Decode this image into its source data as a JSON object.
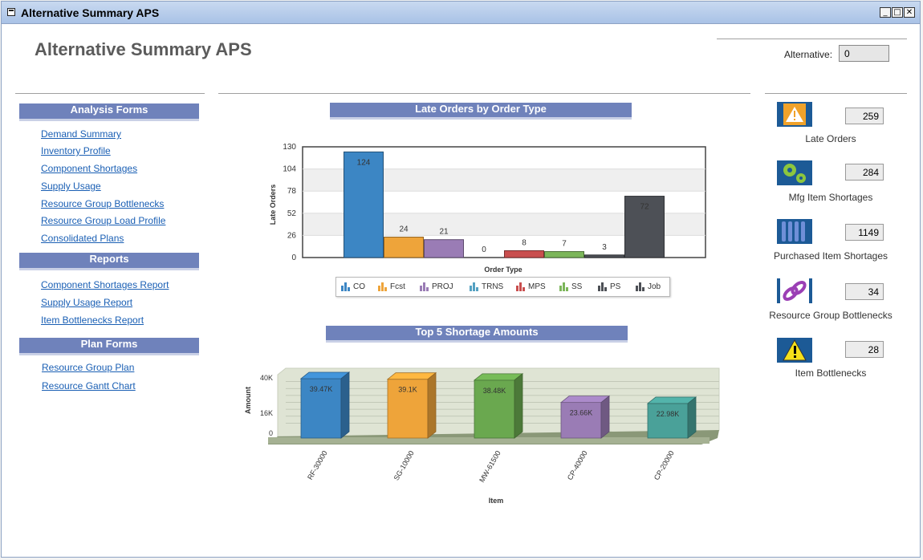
{
  "window": {
    "title": "Alternative Summary APS",
    "minimize": "_",
    "maximize": "□",
    "close": "✕"
  },
  "page": {
    "title": "Alternative Summary APS"
  },
  "alternative": {
    "label": "Alternative:",
    "value": "0"
  },
  "sections": {
    "analysis": {
      "title": "Analysis Forms",
      "links": [
        "Demand Summary",
        "Inventory Profile",
        "Component Shortages",
        "Supply Usage",
        "Resource Group Bottlenecks",
        "Resource Group Load Profile",
        "Consolidated Plans"
      ]
    },
    "reports": {
      "title": "Reports",
      "links": [
        "Component Shortages Report",
        "Supply Usage Report",
        "Item Bottlenecks Report"
      ]
    },
    "plan": {
      "title": "Plan Forms",
      "links": [
        "Resource Group Plan",
        "Resource Gantt Chart"
      ]
    }
  },
  "kpis": [
    {
      "label": "Late Orders",
      "value": "259",
      "icon": "warning-icon",
      "color": "#1c5a96"
    },
    {
      "label": "Mfg Item Shortages",
      "value": "284",
      "icon": "gears-icon",
      "color": "#1c5a96"
    },
    {
      "label": "Purchased Item Shortages",
      "value": "1149",
      "icon": "parts-icon",
      "color": "#1c5a96"
    },
    {
      "label": "Resource Group Bottlenecks",
      "value": "34",
      "icon": "chain-link-icon",
      "color": "#1c5a96"
    },
    {
      "label": "Item Bottlenecks",
      "value": "28",
      "icon": "alert-icon",
      "color": "#1c5a96"
    }
  ],
  "chart_data": [
    {
      "type": "bar",
      "title": "Late Orders by Order Type",
      "xlabel": "Order Type",
      "ylabel": "Late Orders",
      "ylim": [
        0,
        130
      ],
      "yticks": [
        0,
        26,
        52,
        78,
        104,
        130
      ],
      "grid": true,
      "legend_position": "bottom",
      "categories": [
        "CO",
        "Fcst",
        "PROJ",
        "TRNS",
        "MPS",
        "SS",
        "PS",
        "Job"
      ],
      "values": [
        124,
        24,
        21,
        0,
        8,
        7,
        3,
        72
      ],
      "colors": [
        "#3c86c4",
        "#eea43a",
        "#9a7cb5",
        "#54a1c2",
        "#c94e4e",
        "#7cb65a",
        "#4d5056",
        "#4d5056"
      ]
    },
    {
      "type": "bar",
      "title": "Top 5 Shortage Amounts",
      "xlabel": "Item",
      "ylabel": "Amount",
      "ylim": [
        0,
        40000
      ],
      "yticks": [
        "0",
        "16K",
        "40K"
      ],
      "grid": true,
      "categories": [
        "RF-30000",
        "SG-10000",
        "MW-61500",
        "CP-40000",
        "CP-20000"
      ],
      "values": [
        39470,
        39100,
        38480,
        23660,
        22980
      ],
      "value_labels": [
        "39.47K",
        "39.1K",
        "38.48K",
        "23.66K",
        "22.98K"
      ],
      "colors": [
        "#3c86c4",
        "#eea43a",
        "#6aa84f",
        "#9a7cb5",
        "#4aa199"
      ]
    }
  ]
}
